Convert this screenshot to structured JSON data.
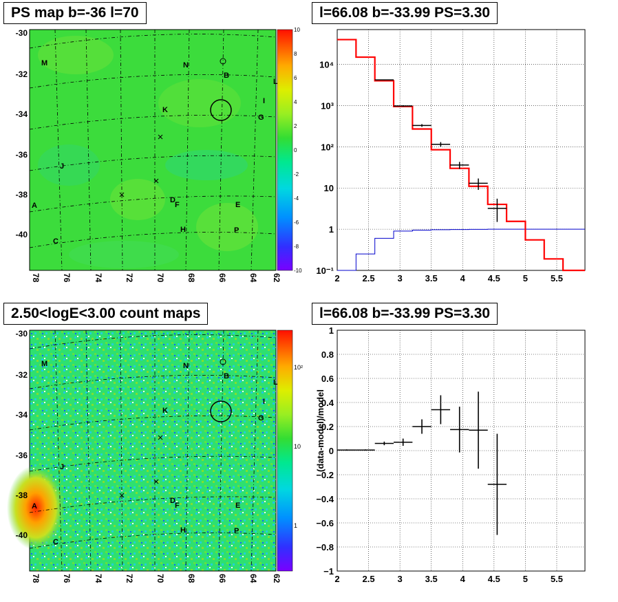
{
  "panels": {
    "tl_title": "PS map b=-36 l=70",
    "tr_title": "l=66.08 b=-33.99 PS=3.30",
    "bl_title": "2.50<logE<3.00 count maps",
    "br_title": "l=66.08 b=-33.99 PS=3.30"
  },
  "colors": {
    "map_green": "#33dd33",
    "model_line": "#ff0000",
    "background_line": "#0000cc",
    "data_marker": "#000000"
  },
  "sky_maps": {
    "x_ticks": [
      "78",
      "76",
      "74",
      "72",
      "70",
      "68",
      "66",
      "64",
      "62"
    ],
    "y_ticks": [
      "-30",
      "-32",
      "-34",
      "-36",
      "-38",
      "-40"
    ],
    "sources": [
      "M",
      "N",
      "O",
      "B",
      "L",
      "I",
      "K",
      "G",
      "J",
      "A",
      "D",
      "F",
      "E",
      "H",
      "P",
      "C"
    ],
    "ps_colorbar_ticks": [
      "10",
      "8",
      "6",
      "4",
      "2",
      "0",
      "-2",
      "-4",
      "-6",
      "-8",
      "-10"
    ],
    "count_colorbar_ticks": [
      "10²",
      "10",
      "1"
    ]
  },
  "chart_data": [
    {
      "type": "line",
      "description_source": "spectrum panel (top-right)",
      "title": "l=66.08 b=-33.99 PS=3.30",
      "xlim": [
        2,
        5.95
      ],
      "ylim": [
        0.1,
        70000
      ],
      "log_y": true,
      "x_ticks": [
        "2",
        "2.5",
        "3",
        "3.5",
        "4",
        "4.5",
        "5",
        "5.5"
      ],
      "y_ticks": [
        "10⁻¹",
        "1",
        "10",
        "10²",
        "10³",
        "10⁴"
      ],
      "grid": true,
      "model_edges": [
        2,
        2.3,
        2.6,
        2.9,
        3.2,
        3.5,
        3.8,
        4.1,
        4.4,
        4.7,
        5.0,
        5.3,
        5.6,
        5.95
      ],
      "model_values": [
        40000,
        15000,
        4000,
        950,
        270,
        85,
        30,
        11,
        4,
        1.55,
        0.55,
        0.19,
        0.1
      ],
      "background_edges": [
        2,
        2.3,
        2.6,
        2.9,
        3.2,
        3.5,
        3.8,
        4.1,
        4.4,
        4.7,
        5.0,
        5.3,
        5.6,
        5.95
      ],
      "background_values": [
        0.08,
        0.25,
        0.6,
        0.9,
        0.95,
        0.97,
        0.98,
        0.99,
        1,
        1,
        1,
        1,
        1
      ],
      "data_points": [
        {
          "x": 2.75,
          "xerr": 0.15,
          "y": 4200,
          "ylo": 4100,
          "yhi": 4300
        },
        {
          "x": 3.05,
          "xerr": 0.15,
          "y": 980,
          "ylo": 940,
          "yhi": 1020
        },
        {
          "x": 3.35,
          "xerr": 0.15,
          "y": 330,
          "ylo": 305,
          "yhi": 355
        },
        {
          "x": 3.65,
          "xerr": 0.15,
          "y": 115,
          "ylo": 100,
          "yhi": 130
        },
        {
          "x": 3.95,
          "xerr": 0.15,
          "y": 36,
          "ylo": 29,
          "yhi": 43
        },
        {
          "x": 4.25,
          "xerr": 0.15,
          "y": 13,
          "ylo": 9,
          "yhi": 17
        },
        {
          "x": 4.55,
          "xerr": 0.15,
          "y": 3.2,
          "ylo": 1.5,
          "yhi": 5.5
        }
      ]
    },
    {
      "type": "scatter",
      "description_source": "residual panel (bottom-right)",
      "title": "l=66.08 b=-33.99 PS=3.30",
      "ylabel": "(data-model)/model",
      "xlim": [
        2,
        5.95
      ],
      "ylim": [
        -1,
        1
      ],
      "x_ticks": [
        "2",
        "2.5",
        "3",
        "3.5",
        "4",
        "4.5",
        "5",
        "5.5"
      ],
      "y_ticks": [
        "1",
        "0.8",
        "0.6",
        "0.4",
        "0.2",
        "0",
        "−0.2",
        "−0.4",
        "−0.6",
        "−0.8",
        "−1"
      ],
      "grid": true,
      "points": [
        {
          "x": 2.15,
          "xerr": 0.15,
          "y": 0.005,
          "yerr": 0.005
        },
        {
          "x": 2.45,
          "xerr": 0.15,
          "y": 0.005,
          "yerr": 0.005
        },
        {
          "x": 2.75,
          "xerr": 0.15,
          "y": 0.06,
          "yerr": 0.015
        },
        {
          "x": 3.05,
          "xerr": 0.15,
          "y": 0.07,
          "yerr": 0.03
        },
        {
          "x": 3.35,
          "xerr": 0.15,
          "y": 0.2,
          "yerr": 0.06
        },
        {
          "x": 3.65,
          "xerr": 0.15,
          "y": 0.34,
          "yerr": 0.12
        },
        {
          "x": 3.95,
          "xerr": 0.15,
          "y": 0.175,
          "yerr": 0.19
        },
        {
          "x": 4.25,
          "xerr": 0.15,
          "y": 0.17,
          "yerr": 0.32
        },
        {
          "x": 4.55,
          "xerr": 0.15,
          "y": -0.28,
          "yerr": 0.42
        }
      ]
    }
  ]
}
